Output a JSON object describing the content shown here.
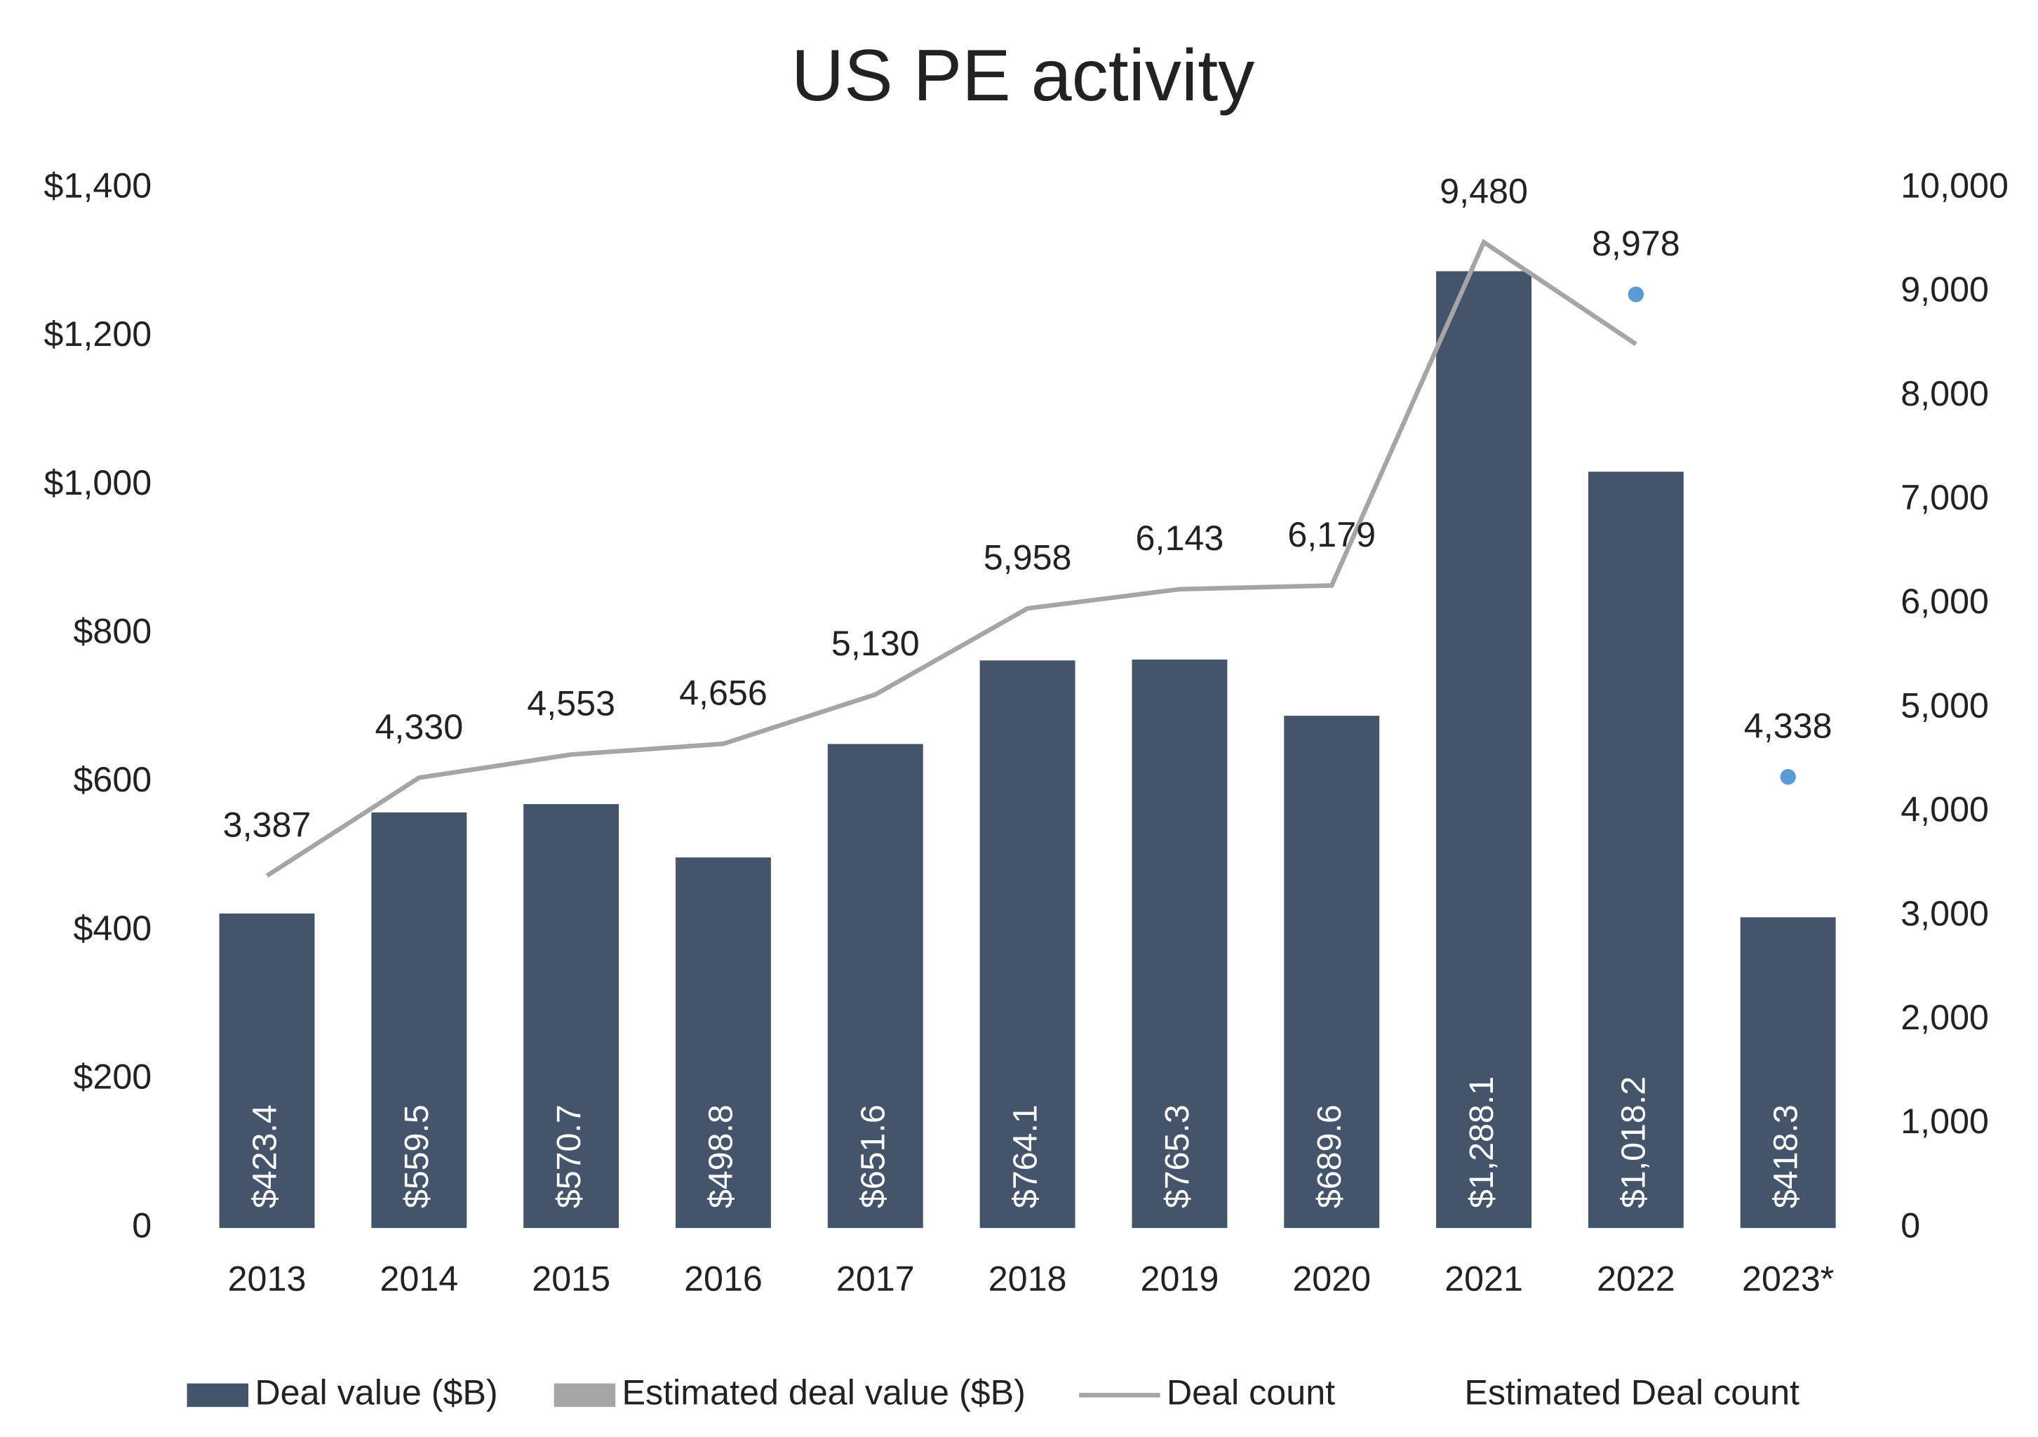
{
  "chart_data": {
    "type": "bar",
    "title": "US PE activity",
    "categories": [
      "2013",
      "2014",
      "2015",
      "2016",
      "2017",
      "2018",
      "2019",
      "2020",
      "2021",
      "2022",
      "2023*"
    ],
    "series": [
      {
        "name": "Deal value ($B)",
        "type": "bar",
        "color": "#44546a",
        "values": [
          423.4,
          559.5,
          570.7,
          498.8,
          651.6,
          764.1,
          765.3,
          689.6,
          1288.1,
          1018.2,
          418.3
        ],
        "value_labels": [
          "$423.4",
          "$559.5",
          "$570.7",
          "$498.8",
          "$651.6",
          "$764.1",
          "$765.3",
          "$689.6",
          "$1,288.1",
          "$1,018.2",
          "$418.3"
        ]
      },
      {
        "name": "Estimated deal value ($B)",
        "type": "bar",
        "color": "#a5a5a5",
        "values": [
          null,
          null,
          null,
          null,
          null,
          null,
          null,
          null,
          null,
          null,
          null
        ]
      },
      {
        "name": "Deal count",
        "type": "line",
        "axis": "y2",
        "color": "#a5a5a5",
        "values": [
          3387,
          4330,
          4553,
          4656,
          5130,
          5958,
          6143,
          6179,
          9480,
          8500,
          null
        ],
        "value_labels": [
          "3,387",
          "4,330",
          "4,553",
          "4,656",
          "5,130",
          "5,958",
          "6,143",
          "6,179",
          "9,480",
          null,
          null
        ]
      },
      {
        "name": "Estimated Deal count",
        "type": "scatter",
        "axis": "y2",
        "color": "#5b9bd5",
        "values": [
          null,
          null,
          null,
          null,
          null,
          null,
          null,
          null,
          null,
          8978,
          4338
        ],
        "value_labels": [
          null,
          null,
          null,
          null,
          null,
          null,
          null,
          null,
          null,
          "8,978",
          "4,338"
        ]
      }
    ],
    "ylim": [
      0,
      1400
    ],
    "yticks": [
      0,
      {
        "value": 200,
        "label": "$200"
      },
      {
        "value": 400,
        "label": "$400"
      },
      {
        "value": 600,
        "label": "$600"
      },
      {
        "value": 800,
        "label": "$800"
      },
      {
        "value": 1000,
        "label": "$1,000"
      },
      {
        "value": 1200,
        "label": "$1,200"
      },
      {
        "value": 1400,
        "label": "$1,400"
      }
    ],
    "y2lim": [
      0,
      10000
    ],
    "y2ticks": [
      0,
      {
        "value": 1000,
        "label": "1,000"
      },
      {
        "value": 2000,
        "label": "2,000"
      },
      {
        "value": 3000,
        "label": "3,000"
      },
      {
        "value": 4000,
        "label": "4,000"
      },
      {
        "value": 5000,
        "label": "5,000"
      },
      {
        "value": 6000,
        "label": "6,000"
      },
      {
        "value": 7000,
        "label": "7,000"
      },
      {
        "value": 8000,
        "label": "8,000"
      },
      {
        "value": 9000,
        "label": "9,000"
      },
      {
        "value": 10000,
        "label": "10,000"
      }
    ],
    "grid": false,
    "legend": "bottom"
  }
}
